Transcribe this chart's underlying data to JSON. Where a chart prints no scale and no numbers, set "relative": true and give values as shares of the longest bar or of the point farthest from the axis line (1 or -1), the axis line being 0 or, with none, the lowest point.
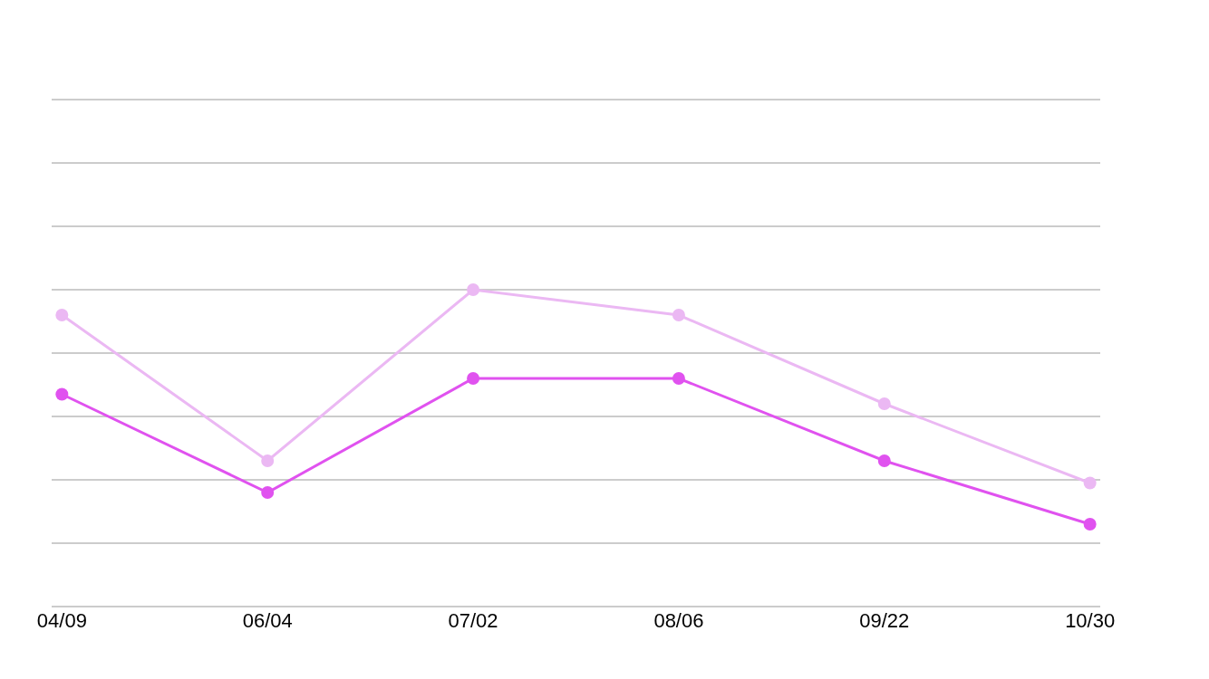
{
  "chart_data": {
    "type": "line",
    "relative": true,
    "categories": [
      "04/09",
      "06/04",
      "07/02",
      "08/06",
      "09/22",
      "10/30"
    ],
    "series": [
      {
        "color": "#ebb8f3",
        "values": [
          0.92,
          0.46,
          1,
          0.92,
          0.64,
          0.39
        ]
      },
      {
        "color": "#e052ef",
        "values": [
          0.67,
          0.36,
          0.72,
          0.72,
          0.46,
          0.26
        ]
      }
    ],
    "grid": "y",
    "marker": "circle",
    "line_style": "solid"
  }
}
